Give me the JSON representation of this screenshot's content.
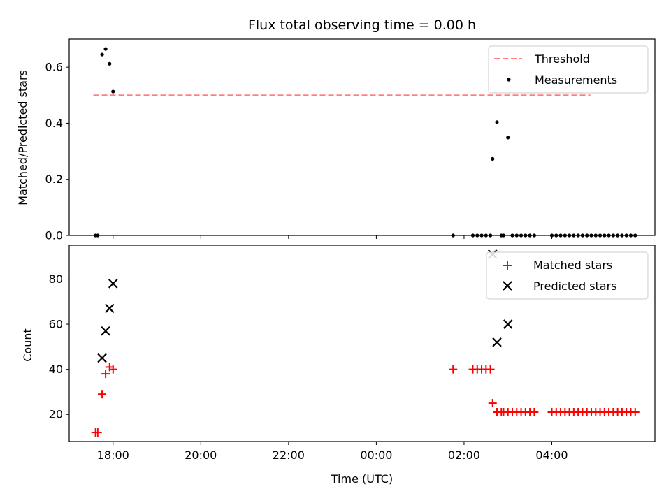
{
  "chart_data": [
    {
      "type": "scatter",
      "title": "Flux total observing time = 0.00 h",
      "ylabel": "Matched/Predicted stars",
      "xlabel": "",
      "ylim": [
        0,
        0.7
      ],
      "xlim": [
        -1.0,
        12.35
      ],
      "yticks": [
        0.0,
        0.2,
        0.4,
        0.6
      ],
      "ytick_labels": [
        "0.0",
        "0.2",
        "0.4",
        "0.6"
      ],
      "legend_position": "top-right",
      "legend": [
        "Threshold",
        "Measurements"
      ],
      "threshold": {
        "name": "Threshold",
        "value": 0.5,
        "x": [
          -0.45,
          10.88
        ],
        "color": "#ff8080"
      },
      "series": [
        {
          "name": "Measurements",
          "marker": "dot",
          "color": "#000000",
          "x": [
            -0.4,
            -0.35,
            -0.25,
            -0.17,
            -0.08,
            0.0,
            7.75,
            8.2,
            8.3,
            8.4,
            8.5,
            8.6,
            8.65,
            8.75,
            8.85,
            8.9,
            9.0,
            9.1,
            9.2,
            9.3,
            9.4,
            9.5,
            9.6,
            10.0,
            10.1,
            10.2,
            10.3,
            10.4,
            10.5,
            10.6,
            10.7,
            10.8,
            10.9,
            11.0,
            11.1,
            11.2,
            11.3,
            11.4,
            11.5,
            11.6,
            11.7,
            11.8,
            11.9
          ],
          "y": [
            0.0,
            0.0,
            0.645,
            0.665,
            0.612,
            0.513,
            0.0,
            0.0,
            0.0,
            0.0,
            0.0,
            0.0,
            0.273,
            0.404,
            0.0,
            0.0,
            0.349,
            0.0,
            0.0,
            0.0,
            0.0,
            0.0,
            0.0,
            0.0,
            0.0,
            0.0,
            0.0,
            0.0,
            0.0,
            0.0,
            0.0,
            0.0,
            0.0,
            0.0,
            0.0,
            0.0,
            0.0,
            0.0,
            0.0,
            0.0,
            0.0,
            0.0,
            0.0
          ]
        }
      ]
    },
    {
      "type": "scatter",
      "title": "",
      "ylabel": "Count",
      "xlabel": "Time (UTC)",
      "ylim": [
        8,
        95
      ],
      "xlim": [
        -1.0,
        12.35
      ],
      "yticks": [
        20,
        40,
        60,
        80
      ],
      "ytick_labels": [
        "20",
        "40",
        "60",
        "80"
      ],
      "xticks": [
        0,
        2,
        4,
        6,
        8,
        10
      ],
      "xtick_labels": [
        "18:00",
        "20:00",
        "22:00",
        "00:00",
        "02:00",
        "04:00"
      ],
      "legend_position": "top-right",
      "legend": [
        "Matched stars",
        "Predicted stars"
      ],
      "series": [
        {
          "name": "Matched stars",
          "marker": "plus",
          "color": "#ff0000",
          "x": [
            -0.4,
            -0.35,
            -0.25,
            -0.17,
            -0.08,
            0.0,
            7.75,
            8.2,
            8.3,
            8.4,
            8.5,
            8.6,
            8.65,
            8.75,
            8.85,
            8.9,
            9.0,
            9.1,
            9.2,
            9.3,
            9.4,
            9.5,
            9.6,
            10.0,
            10.1,
            10.2,
            10.3,
            10.4,
            10.5,
            10.6,
            10.7,
            10.8,
            10.9,
            11.0,
            11.1,
            11.2,
            11.3,
            11.4,
            11.5,
            11.6,
            11.7,
            11.8,
            11.9
          ],
          "y": [
            12,
            12,
            29,
            38,
            41,
            40,
            40,
            40,
            40,
            40,
            40,
            40,
            25,
            21,
            21,
            21,
            21,
            21,
            21,
            21,
            21,
            21,
            21,
            21,
            21,
            21,
            21,
            21,
            21,
            21,
            21,
            21,
            21,
            21,
            21,
            21,
            21,
            21,
            21,
            21,
            21,
            21,
            21
          ]
        },
        {
          "name": "Predicted stars",
          "marker": "x",
          "color": "#000000",
          "x": [
            -0.25,
            -0.17,
            -0.08,
            0.0,
            8.65,
            8.75,
            9.0
          ],
          "y": [
            45,
            57,
            67,
            78,
            91,
            52,
            60
          ]
        }
      ]
    }
  ]
}
